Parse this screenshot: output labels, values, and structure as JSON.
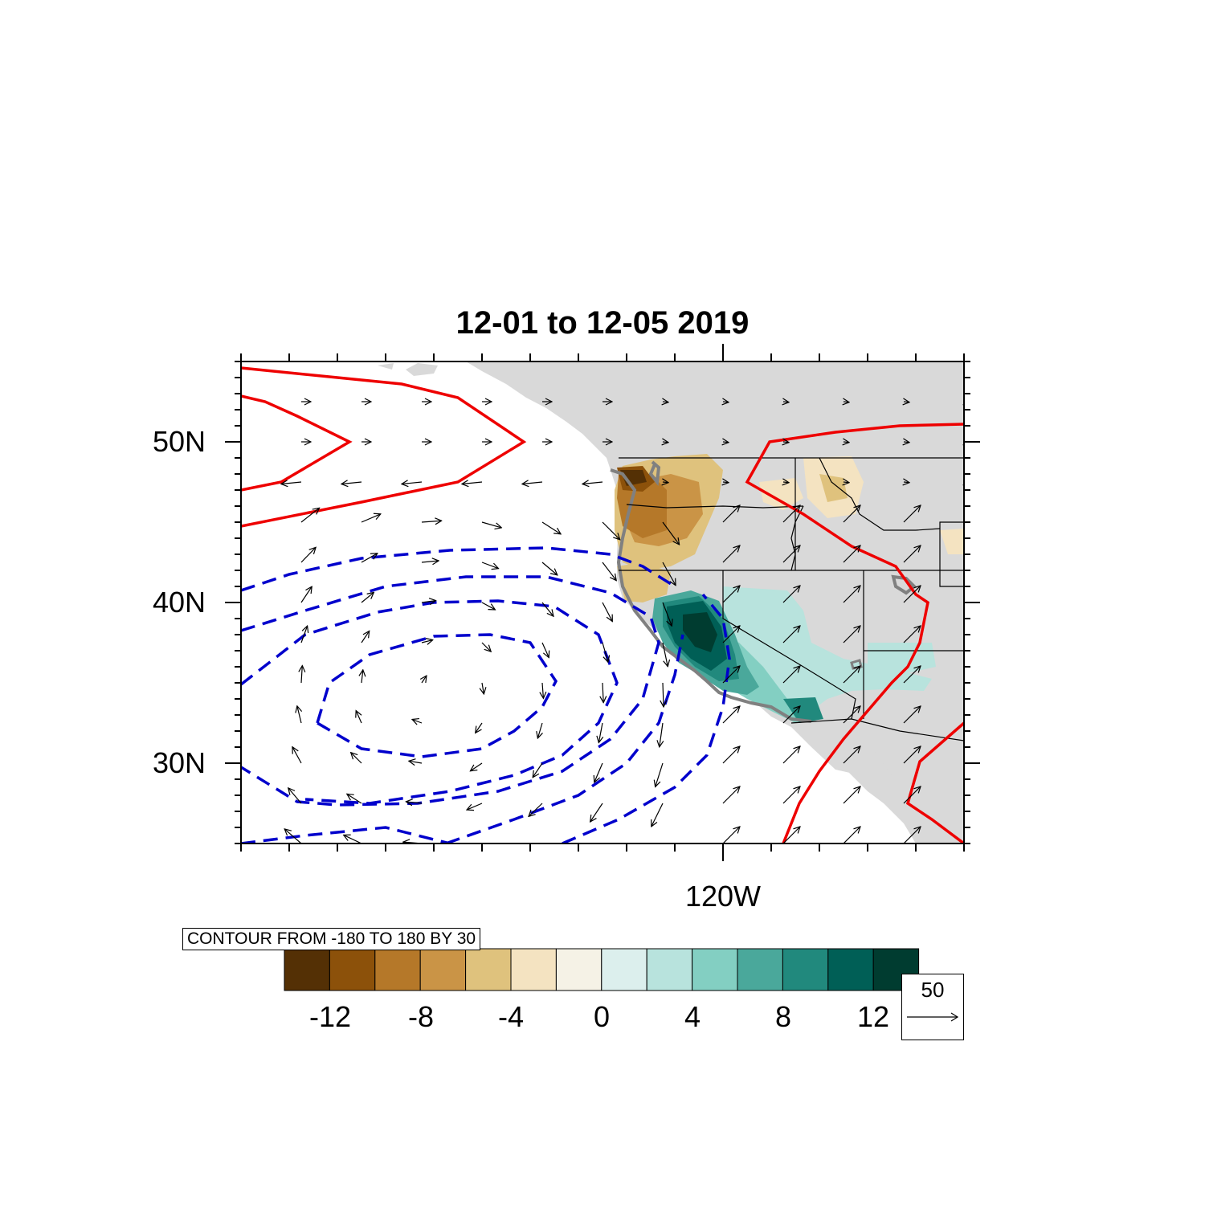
{
  "title": "12-01 to 12-05 2019",
  "lat_labels": [
    "50N",
    "40N",
    "30N"
  ],
  "lon_labels": [
    "120W"
  ],
  "contour_info": "CONTOUR FROM -180 TO 180 BY 30",
  "colorbar": {
    "tick_labels": [
      "-12",
      "-8",
      "-4",
      "0",
      "4",
      "8",
      "12"
    ],
    "colors": [
      "#543005",
      "#8c510a",
      "#b57829",
      "#ca9446",
      "#dfc27d",
      "#f4e3c1",
      "#f5f2e6",
      "#dcefed",
      "#b8e3dd",
      "#83cfc2",
      "#4aa89b",
      "#21897d",
      "#005f56",
      "#003c30"
    ]
  },
  "vector_reference": {
    "magnitude": "50"
  },
  "colors": {
    "land": "#d9d9d9",
    "positive_contour": "#ee0000",
    "negative_contour": "#0000cc",
    "coastline": "#808080"
  },
  "chart_data": {
    "type": "map",
    "projection": "cylindrical equidistant",
    "lon_range": [
      -150,
      -105
    ],
    "lat_range": [
      25,
      55
    ],
    "shading": "anomaly field, range -12 to 12, interval 2 (brown negative, teal positive)",
    "line_contours": {
      "min": -180,
      "max": 180,
      "interval": 30,
      "positive_style": "solid red",
      "negative_style": "dashed blue"
    },
    "vectors": "wind vectors, reference magnitude 50"
  }
}
